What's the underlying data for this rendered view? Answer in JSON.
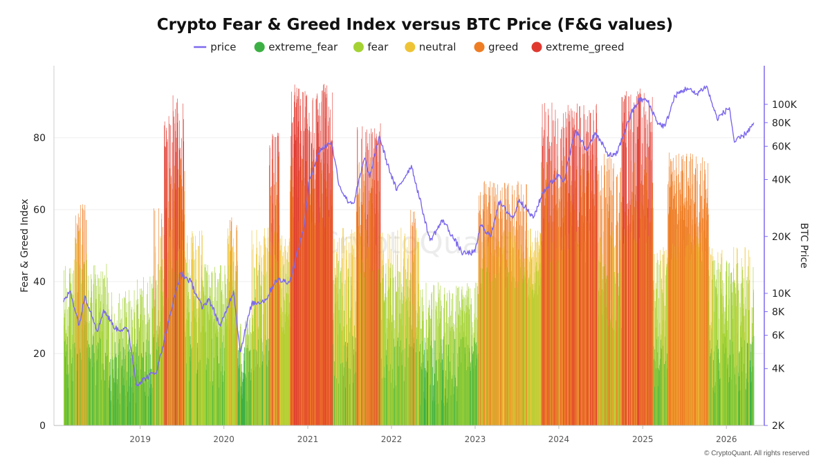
{
  "chart_data": {
    "type": "bar",
    "title": "Crypto Fear & Greed Index versus BTC Price (F&G values)",
    "ylabel": "Fear & Greed Index",
    "y2label": "BTC Price",
    "ylim": [
      0,
      100
    ],
    "y2lim": [
      2000,
      160000
    ],
    "y2_scale": "log",
    "yticks": [
      0,
      20,
      40,
      60,
      80
    ],
    "y2ticks": [
      {
        "value": 2000,
        "label": "2K"
      },
      {
        "value": 4000,
        "label": "4K"
      },
      {
        "value": 6000,
        "label": "6K"
      },
      {
        "value": 8000,
        "label": "8K"
      },
      {
        "value": 10000,
        "label": "10K"
      },
      {
        "value": 20000,
        "label": "20K"
      },
      {
        "value": 40000,
        "label": "40K"
      },
      {
        "value": 60000,
        "label": "60K"
      },
      {
        "value": 80000,
        "label": "80K"
      },
      {
        "value": 100000,
        "label": "100K"
      }
    ],
    "xticks": [
      "2019",
      "2020",
      "2021",
      "2022",
      "2023",
      "2024",
      "2025",
      "2026"
    ],
    "x_range": [
      "2018-02-01",
      "2026-05-01"
    ],
    "legend_position": "top-center",
    "grid": "horizontal",
    "series": [
      {
        "name": "price",
        "type": "line",
        "color": "#7b68ee"
      },
      {
        "name": "extreme_fear",
        "type": "bar",
        "color": "#3cb044",
        "range": [
          0,
          25
        ]
      },
      {
        "name": "fear",
        "type": "bar",
        "color": "#a4d233",
        "range": [
          25,
          46
        ]
      },
      {
        "name": "neutral",
        "type": "bar",
        "color": "#eec436",
        "range": [
          46,
          55
        ]
      },
      {
        "name": "greed",
        "type": "bar",
        "color": "#ee7d24",
        "range": [
          55,
          76
        ]
      },
      {
        "name": "extreme_greed",
        "type": "bar",
        "color": "#e03a30",
        "range": [
          76,
          100
        ]
      }
    ],
    "fg_segments": [
      {
        "start": "2018-02-01",
        "end": "2018-03-15",
        "low": 8,
        "high": 45
      },
      {
        "start": "2018-03-15",
        "end": "2018-05-15",
        "low": 15,
        "high": 62
      },
      {
        "start": "2018-05-15",
        "end": "2018-08-15",
        "low": 10,
        "high": 45
      },
      {
        "start": "2018-08-15",
        "end": "2018-12-15",
        "low": 5,
        "high": 38
      },
      {
        "start": "2018-12-15",
        "end": "2019-02-28",
        "low": 8,
        "high": 42
      },
      {
        "start": "2019-02-28",
        "end": "2019-04-15",
        "low": 20,
        "high": 62
      },
      {
        "start": "2019-04-15",
        "end": "2019-07-15",
        "low": 35,
        "high": 92
      },
      {
        "start": "2019-07-15",
        "end": "2019-10-01",
        "low": 12,
        "high": 55
      },
      {
        "start": "2019-10-01",
        "end": "2020-01-15",
        "low": 10,
        "high": 45
      },
      {
        "start": "2020-01-15",
        "end": "2020-03-01",
        "low": 25,
        "high": 58
      },
      {
        "start": "2020-03-01",
        "end": "2020-05-01",
        "low": 4,
        "high": 30
      },
      {
        "start": "2020-05-01",
        "end": "2020-07-15",
        "low": 15,
        "high": 55
      },
      {
        "start": "2020-07-15",
        "end": "2020-08-31",
        "low": 40,
        "high": 82
      },
      {
        "start": "2020-08-31",
        "end": "2020-10-15",
        "low": 25,
        "high": 55
      },
      {
        "start": "2020-10-15",
        "end": "2021-04-20",
        "low": 55,
        "high": 95
      },
      {
        "start": "2021-04-20",
        "end": "2021-07-31",
        "low": 10,
        "high": 55
      },
      {
        "start": "2021-07-31",
        "end": "2021-11-15",
        "low": 40,
        "high": 84
      },
      {
        "start": "2021-11-15",
        "end": "2022-03-15",
        "low": 10,
        "high": 55
      },
      {
        "start": "2022-03-15",
        "end": "2022-05-01",
        "low": 20,
        "high": 60
      },
      {
        "start": "2022-05-01",
        "end": "2022-10-15",
        "low": 5,
        "high": 40
      },
      {
        "start": "2022-10-15",
        "end": "2023-01-15",
        "low": 15,
        "high": 40
      },
      {
        "start": "2023-01-15",
        "end": "2023-08-15",
        "low": 38,
        "high": 68
      },
      {
        "start": "2023-08-15",
        "end": "2023-10-15",
        "low": 35,
        "high": 55
      },
      {
        "start": "2023-10-15",
        "end": "2024-06-15",
        "low": 45,
        "high": 90
      },
      {
        "start": "2024-06-15",
        "end": "2024-10-01",
        "low": 25,
        "high": 76
      },
      {
        "start": "2024-10-01",
        "end": "2025-02-15",
        "low": 50,
        "high": 94
      },
      {
        "start": "2025-02-15",
        "end": "2025-04-20",
        "low": 10,
        "high": 50
      },
      {
        "start": "2025-04-20",
        "end": "2025-10-15",
        "low": 45,
        "high": 76
      },
      {
        "start": "2025-10-15",
        "end": "2026-05-01",
        "low": 8,
        "high": 50
      }
    ],
    "price_points": [
      [
        "2018-02-01",
        9000
      ],
      [
        "2018-03-01",
        10300
      ],
      [
        "2018-04-10",
        6800
      ],
      [
        "2018-05-05",
        9700
      ],
      [
        "2018-06-30",
        6300
      ],
      [
        "2018-07-25",
        8200
      ],
      [
        "2018-09-15",
        6500
      ],
      [
        "2018-11-10",
        6400
      ],
      [
        "2018-12-15",
        3300
      ],
      [
        "2019-03-15",
        3900
      ],
      [
        "2019-05-15",
        8000
      ],
      [
        "2019-06-26",
        12800
      ],
      [
        "2019-08-10",
        11500
      ],
      [
        "2019-09-30",
        8300
      ],
      [
        "2019-10-26",
        9400
      ],
      [
        "2019-12-17",
        6700
      ],
      [
        "2020-02-12",
        10300
      ],
      [
        "2020-03-12",
        4900
      ],
      [
        "2020-05-01",
        8800
      ],
      [
        "2020-07-01",
        9200
      ],
      [
        "2020-08-15",
        11800
      ],
      [
        "2020-10-15",
        11500
      ],
      [
        "2020-12-17",
        23000
      ],
      [
        "2021-01-08",
        40000
      ],
      [
        "2021-02-21",
        57000
      ],
      [
        "2021-04-14",
        63500
      ],
      [
        "2021-05-19",
        37000
      ],
      [
        "2021-06-22",
        31000
      ],
      [
        "2021-07-20",
        30000
      ],
      [
        "2021-09-06",
        52000
      ],
      [
        "2021-09-28",
        41000
      ],
      [
        "2021-11-09",
        68000
      ],
      [
        "2021-12-15",
        48000
      ],
      [
        "2022-01-24",
        35000
      ],
      [
        "2022-03-29",
        47500
      ],
      [
        "2022-05-12",
        29000
      ],
      [
        "2022-06-18",
        19000
      ],
      [
        "2022-08-14",
        24500
      ],
      [
        "2022-09-30",
        19400
      ],
      [
        "2022-11-09",
        16200
      ],
      [
        "2022-12-31",
        16500
      ],
      [
        "2023-01-25",
        23000
      ],
      [
        "2023-03-10",
        20000
      ],
      [
        "2023-04-14",
        30500
      ],
      [
        "2023-06-15",
        25000
      ],
      [
        "2023-07-13",
        31500
      ],
      [
        "2023-09-11",
        25000
      ],
      [
        "2023-10-25",
        34500
      ],
      [
        "2023-12-31",
        42500
      ],
      [
        "2024-01-23",
        39500
      ],
      [
        "2024-03-14",
        73000
      ],
      [
        "2024-05-01",
        57000
      ],
      [
        "2024-06-07",
        71000
      ],
      [
        "2024-08-05",
        54000
      ],
      [
        "2024-09-06",
        53500
      ],
      [
        "2024-11-13",
        90000
      ],
      [
        "2024-12-17",
        106000
      ],
      [
        "2025-01-20",
        105000
      ],
      [
        "2025-03-10",
        79000
      ],
      [
        "2025-04-08",
        76500
      ],
      [
        "2025-05-22",
        111000
      ],
      [
        "2025-07-14",
        122000
      ],
      [
        "2025-08-20",
        113000
      ],
      [
        "2025-10-06",
        125000
      ],
      [
        "2025-11-21",
        84000
      ],
      [
        "2026-01-14",
        96000
      ],
      [
        "2026-02-05",
        63000
      ],
      [
        "2026-03-15",
        68000
      ],
      [
        "2026-04-20",
        76000
      ],
      [
        "2026-04-30",
        80000
      ]
    ]
  },
  "watermark": "CryptoQuant",
  "copyright": "© CryptoQuant. All rights reserved"
}
